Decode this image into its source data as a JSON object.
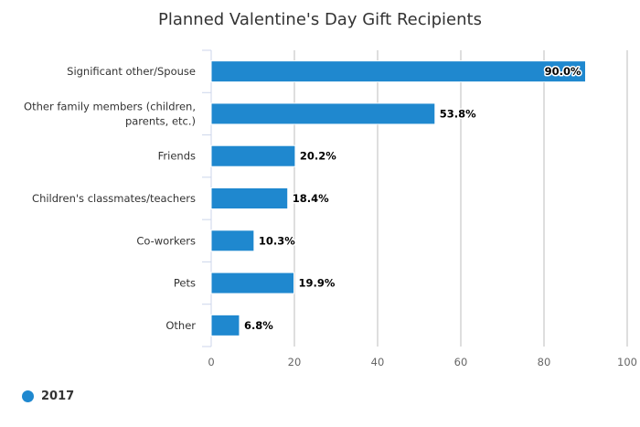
{
  "chart_data": {
    "type": "bar",
    "orientation": "horizontal",
    "title": "Planned Valentine's Day Gift Recipients",
    "categories": [
      [
        "Significant other/Spouse"
      ],
      [
        "Other family members (children,",
        "parents, etc.)"
      ],
      [
        "Friends"
      ],
      [
        "Children's classmates/teachers"
      ],
      [
        "Co-workers"
      ],
      [
        "Pets"
      ],
      [
        "Other"
      ]
    ],
    "series": [
      {
        "name": "2017",
        "color": "#1f88cf",
        "values": [
          90.0,
          53.8,
          20.2,
          18.4,
          10.3,
          19.9,
          6.8
        ],
        "labels": [
          "90.0%",
          "53.8%",
          "20.2%",
          "18.4%",
          "10.3%",
          "19.9%",
          "6.8%"
        ]
      }
    ],
    "xlim": [
      0,
      100
    ],
    "xticks": [
      "0",
      "20",
      "40",
      "60",
      "80",
      "100"
    ],
    "grid": true,
    "legend_position": "bottom-left"
  }
}
